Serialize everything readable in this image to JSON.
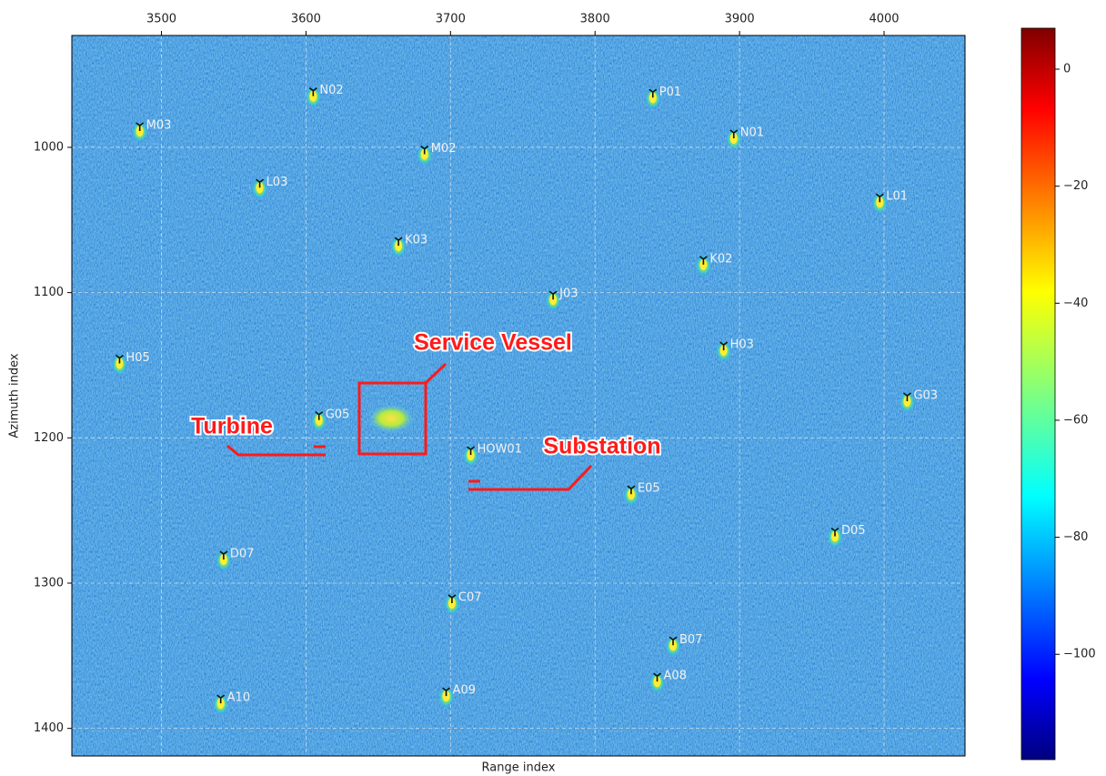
{
  "chart_data": {
    "type": "scatter",
    "xlabel": "Range index",
    "ylabel": "Azimuth index",
    "xlim": [
      3438,
      4056
    ],
    "ylim": [
      923,
      1419
    ],
    "y_inverted": true,
    "xticks": [
      3500,
      3600,
      3700,
      3800,
      3900,
      4000
    ],
    "yticks": [
      1000,
      1100,
      1200,
      1300,
      1400
    ],
    "grid": true,
    "color": "#ffee33",
    "labels": [
      "M03",
      "N02",
      "P01",
      "N01",
      "M02",
      "L03",
      "L01",
      "K03",
      "K02",
      "J03",
      "H05",
      "H03",
      "G03",
      "G05",
      "HOW01",
      "E05",
      "D05",
      "D07",
      "C07",
      "B07",
      "A08",
      "A09",
      "A10"
    ],
    "x": [
      3485,
      3605,
      3840,
      3896,
      3682,
      3568,
      3997,
      3664,
      3875,
      3771,
      3471,
      3889,
      4016,
      3609,
      3714,
      3825,
      3966,
      3543,
      3701,
      3854,
      3843,
      3697,
      3541
    ],
    "values": [
      985,
      961,
      962,
      990,
      1001,
      1024,
      1034,
      1064,
      1077,
      1101,
      1145,
      1136,
      1171,
      1184,
      1208,
      1235,
      1264,
      1280,
      1310,
      1339,
      1364,
      1374,
      1379
    ],
    "annotations": [
      "Service Vessel",
      "Turbine",
      "Substation"
    ],
    "colorbar": {
      "colormap": "jet",
      "lim": [
        -118,
        7
      ],
      "ticks": [
        0,
        {
          "value": -20,
          "label": "−20"
        },
        {
          "value": -40,
          "label": "−40"
        },
        {
          "value": -60,
          "label": "−60"
        },
        {
          "value": -80,
          "label": "−80"
        },
        {
          "value": -100,
          "label": "−100"
        }
      ]
    }
  }
}
